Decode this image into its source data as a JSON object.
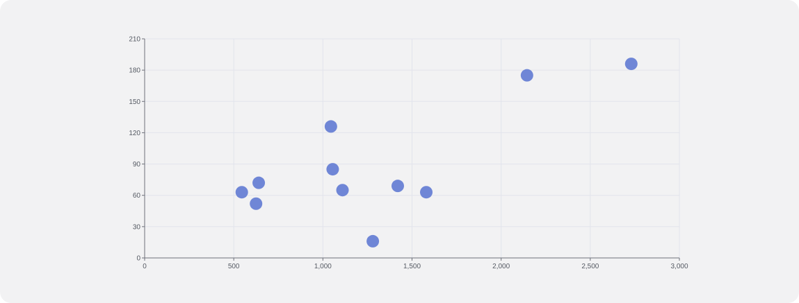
{
  "chart_data": {
    "type": "scatter",
    "title": "",
    "xlabel": "",
    "ylabel": "",
    "xlim": [
      0,
      3000
    ],
    "ylim": [
      0,
      210
    ],
    "x_ticks": [
      0,
      500,
      1000,
      1500,
      2000,
      2500,
      3000
    ],
    "x_tick_labels": [
      "0",
      "500",
      "1,000",
      "1,500",
      "2,000",
      "2,500",
      "3,000"
    ],
    "y_ticks": [
      0,
      30,
      60,
      90,
      120,
      150,
      180,
      210
    ],
    "y_tick_labels": [
      "0",
      "30",
      "60",
      "90",
      "120",
      "150",
      "180",
      "210"
    ],
    "grid": true,
    "legend": "none",
    "point_color": "#6f86d6",
    "series": [
      {
        "points": [
          {
            "x": 545,
            "y": 63
          },
          {
            "x": 640,
            "y": 72
          },
          {
            "x": 625,
            "y": 52
          },
          {
            "x": 1045,
            "y": 126
          },
          {
            "x": 1055,
            "y": 85
          },
          {
            "x": 1110,
            "y": 65
          },
          {
            "x": 1280,
            "y": 16
          },
          {
            "x": 1420,
            "y": 69
          },
          {
            "x": 1580,
            "y": 63
          },
          {
            "x": 2145,
            "y": 175
          },
          {
            "x": 2730,
            "y": 186
          }
        ]
      }
    ]
  }
}
